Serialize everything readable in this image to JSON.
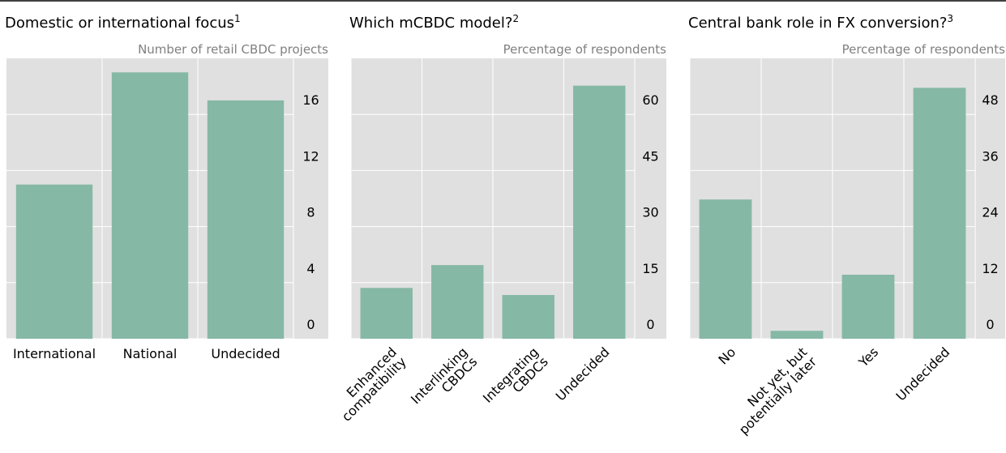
{
  "chart_data": [
    {
      "type": "bar",
      "title": "Domestic or international focus",
      "title_note": "1",
      "subtitle": "Number of retail CBDC projects",
      "categories": [
        [
          "International"
        ],
        [
          "National"
        ],
        [
          "Undecided"
        ]
      ],
      "values": [
        11,
        19,
        17
      ],
      "color": "#86b8a6",
      "ylim": [
        0,
        20
      ],
      "yticks": [
        0,
        4,
        8,
        12,
        16
      ],
      "grid": true,
      "label_rotation": 0
    },
    {
      "type": "bar",
      "title": "Which mCBDC model?",
      "title_note": "2",
      "subtitle": "Percentage of respondents",
      "categories": [
        [
          "Enhanced",
          "compatibility"
        ],
        [
          "Interlinking",
          "CBDCs"
        ],
        [
          "Integrating",
          "CBDCs"
        ],
        [
          "Undecided"
        ]
      ],
      "values": [
        13.6,
        19.7,
        11.7,
        67.7
      ],
      "color": "#86b8a6",
      "ylim": [
        0,
        75
      ],
      "yticks": [
        0,
        15,
        30,
        45,
        60
      ],
      "grid": true,
      "label_rotation": -45
    },
    {
      "type": "bar",
      "title": "Central bank role in FX conversion?",
      "title_note": "3",
      "subtitle": "Percentage of respondents",
      "categories": [
        [
          "No"
        ],
        [
          "Not yet, but",
          "potentially later"
        ],
        [
          "Yes"
        ],
        [
          "Undecided"
        ]
      ],
      "values": [
        29.8,
        1.7,
        13.7,
        53.7
      ],
      "color": "#86b8a6",
      "ylim": [
        0,
        60
      ],
      "yticks": [
        0,
        12,
        24,
        36,
        48
      ],
      "grid": true,
      "label_rotation": -45
    }
  ]
}
